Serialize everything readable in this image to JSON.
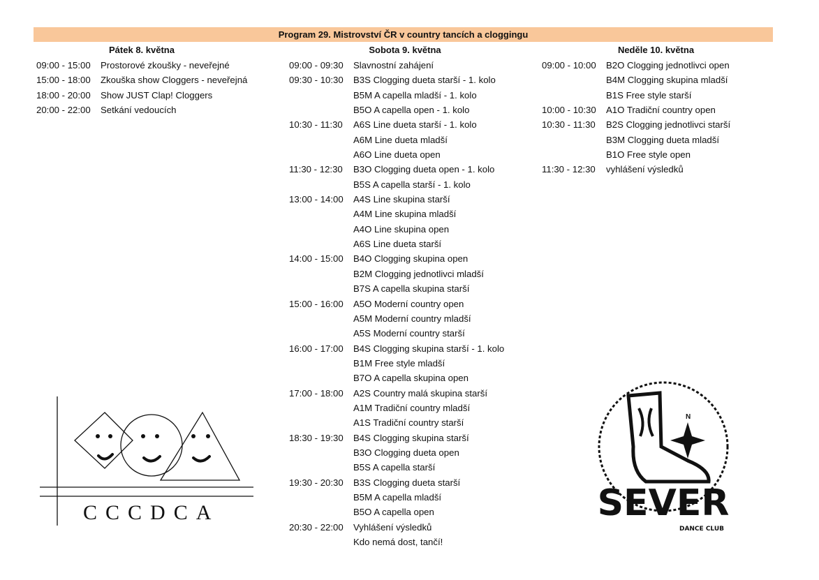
{
  "title": "Program 29. Mistrovství ČR v country tancích a cloggingu",
  "days": [
    {
      "heading": "Pátek 8. května",
      "rows": [
        {
          "time": "09:00 - 15:00",
          "text": "Prostorové zkoušky - neveřejné"
        },
        {
          "time": "15:00 - 18:00",
          "text": "Zkouška show Cloggers - neveřejná"
        },
        {
          "time": "18:00 - 20:00",
          "text": "Show JUST Clap! Cloggers"
        },
        {
          "time": "20:00 - 22:00",
          "text": "Setkání vedoucích"
        }
      ]
    },
    {
      "heading": "Sobota 9. května",
      "rows": [
        {
          "time": "09:00 - 09:30",
          "text": "Slavnostní zahájení"
        },
        {
          "time": "09:30 - 10:30",
          "text": "B3S Clogging dueta starší - 1. kolo"
        },
        {
          "time": "",
          "text": "B5M A capella mladší - 1. kolo"
        },
        {
          "time": "",
          "text": "B5O A capella open - 1. kolo"
        },
        {
          "time": "10:30 - 11:30",
          "text": "A6S Line dueta starší - 1. kolo"
        },
        {
          "time": "",
          "text": "A6M Line dueta mladší"
        },
        {
          "time": "",
          "text": "A6O Line dueta open"
        },
        {
          "time": "11:30 - 12:30",
          "text": "B3O Clogging dueta open - 1. kolo"
        },
        {
          "time": "",
          "text": "B5S A capella starší - 1. kolo"
        },
        {
          "time": "13:00 - 14:00",
          "text": "A4S Line skupina starší"
        },
        {
          "time": "",
          "text": "A4M Line skupina mladší"
        },
        {
          "time": "",
          "text": "A4O Line skupina open"
        },
        {
          "time": "",
          "text": "A6S Line dueta starší"
        },
        {
          "time": "14:00 - 15:00",
          "text": "B4O Clogging skupina open"
        },
        {
          "time": "",
          "text": "B2M Clogging jednotlivci mladší"
        },
        {
          "time": "",
          "text": "B7S A capella skupina starší"
        },
        {
          "time": "15:00 - 16:00",
          "text": "A5O Moderní country open"
        },
        {
          "time": "",
          "text": "A5M Moderní country mladší"
        },
        {
          "time": "",
          "text": "A5S Moderní country starší"
        },
        {
          "time": "16:00 - 17:00",
          "text": "B4S Clogging skupina starší - 1. kolo"
        },
        {
          "time": "",
          "text": "B1M Free style mladší"
        },
        {
          "time": "",
          "text": "B7O A capella skupina open"
        },
        {
          "time": "17:00 - 18:00",
          "text": "A2S Country malá skupina starší"
        },
        {
          "time": "",
          "text": "A1M Tradiční country mladší"
        },
        {
          "time": "",
          "text": "A1S Tradiční country starší"
        },
        {
          "time": "18:30 - 19:30",
          "text": "B4S Clogging skupina starší"
        },
        {
          "time": "",
          "text": "B3O Clogging dueta open"
        },
        {
          "time": "",
          "text": "B5S A capella starší"
        },
        {
          "time": "19:30 - 20:30",
          "text": "B3S Clogging dueta starší"
        },
        {
          "time": "",
          "text": "B5M A capella mladší"
        },
        {
          "time": "",
          "text": "B5O A capella open"
        },
        {
          "time": "20:30 - 22:00",
          "text": "Vyhlášení výsledků"
        },
        {
          "time": "",
          "text": "Kdo nemá dost, tančí!"
        }
      ]
    },
    {
      "heading": "Neděle 10. května",
      "rows": [
        {
          "time": "09:00 - 10:00",
          "text": "B2O Clogging jednotlivci open"
        },
        {
          "time": "",
          "text": "B4M Clogging skupina mladší"
        },
        {
          "time": "",
          "text": "B1S Free style starší"
        },
        {
          "time": "10:00 - 10:30",
          "text": "A1O Tradiční country open"
        },
        {
          "time": "10:30 - 11:30",
          "text": "B2S Clogging jednotlivci starší"
        },
        {
          "time": "",
          "text": "B3M Clogging dueta mladší"
        },
        {
          "time": "",
          "text": "B1O Free style open"
        },
        {
          "time": "11:30 - 12:30",
          "text": "vyhlášení výsledků"
        }
      ]
    }
  ],
  "logos": {
    "left": "CCCDCA",
    "right": "SEVER",
    "right_sub": "DANCE CLUB"
  },
  "colors": {
    "banner": "#f9c79a"
  }
}
